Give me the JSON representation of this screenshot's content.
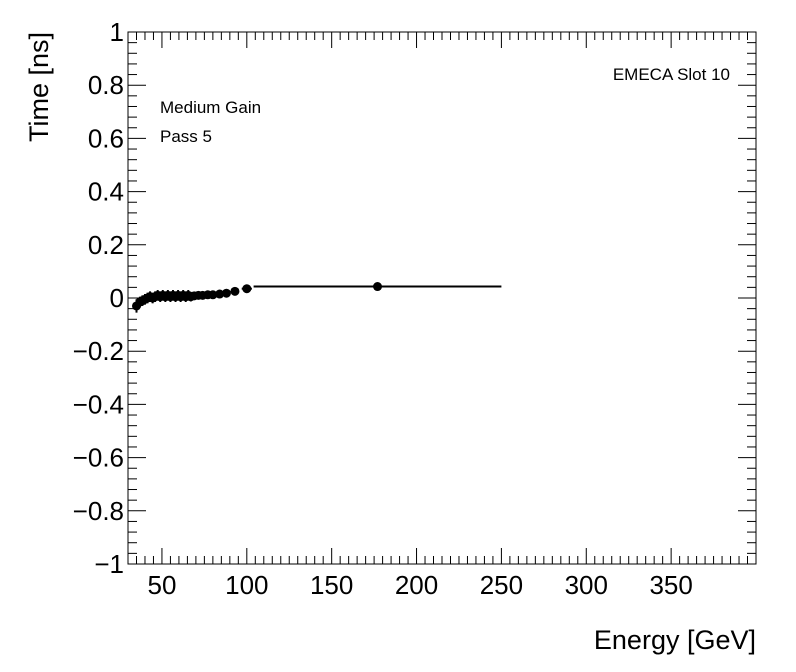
{
  "chart_data": {
    "type": "scatter",
    "title": "",
    "xlabel": "Energy [GeV]",
    "ylabel": "Time [ns]",
    "xlim": [
      30,
      400
    ],
    "ylim": [
      -1,
      1
    ],
    "x_ticks": [
      "50",
      "100",
      "150",
      "200",
      "250",
      "300",
      "350"
    ],
    "x_tick_values": [
      50,
      100,
      150,
      200,
      250,
      300,
      350
    ],
    "y_ticks": [
      "1",
      "0.8",
      "0.6",
      "0.4",
      "0.2",
      "0",
      "−0.2",
      "−0.4",
      "−0.6",
      "−0.8",
      "−1"
    ],
    "y_tick_values": [
      1,
      0.8,
      0.6,
      0.4,
      0.2,
      0,
      -0.2,
      -0.4,
      -0.6,
      -0.8,
      -1
    ],
    "annotations": {
      "gain": "Medium Gain",
      "pass": "Pass 5",
      "slot": "EMECA Slot 10"
    },
    "series": [
      {
        "marker_color": "#000000",
        "points": [
          {
            "x": 35,
            "y": -0.03,
            "xerr": [
              0.5,
              0.5
            ],
            "yerr": 0.025
          },
          {
            "x": 37,
            "y": -0.015,
            "xerr": [
              0.5,
              0.5
            ],
            "yerr": 0.02
          },
          {
            "x": 38.5,
            "y": -0.01,
            "xerr": [
              0.5,
              0.5
            ],
            "yerr": 0.02
          },
          {
            "x": 40,
            "y": -0.005,
            "xerr": [
              0.5,
              0.5
            ],
            "yerr": 0.02
          },
          {
            "x": 41.5,
            "y": 0.0,
            "xerr": [
              0.5,
              0.5
            ],
            "yerr": 0.02
          },
          {
            "x": 43,
            "y": 0.005,
            "xerr": [
              0.5,
              0.5
            ],
            "yerr": 0.02
          },
          {
            "x": 44.5,
            "y": 0.0,
            "xerr": [
              0.5,
              0.5
            ],
            "yerr": 0.02
          },
          {
            "x": 46,
            "y": 0.005,
            "xerr": [
              0.5,
              0.5
            ],
            "yerr": 0.02
          },
          {
            "x": 47.5,
            "y": 0.01,
            "xerr": [
              0.5,
              0.5
            ],
            "yerr": 0.02
          },
          {
            "x": 49,
            "y": 0.005,
            "xerr": [
              0.5,
              0.5
            ],
            "yerr": 0.02
          },
          {
            "x": 50.5,
            "y": 0.01,
            "xerr": [
              0.5,
              0.5
            ],
            "yerr": 0.02
          },
          {
            "x": 52,
            "y": 0.005,
            "xerr": [
              0.5,
              0.5
            ],
            "yerr": 0.02
          },
          {
            "x": 53.5,
            "y": 0.01,
            "xerr": [
              0.5,
              0.5
            ],
            "yerr": 0.02
          },
          {
            "x": 55,
            "y": 0.005,
            "xerr": [
              0.5,
              0.5
            ],
            "yerr": 0.02
          },
          {
            "x": 56.5,
            "y": 0.01,
            "xerr": [
              0.5,
              0.5
            ],
            "yerr": 0.02
          },
          {
            "x": 58,
            "y": 0.005,
            "xerr": [
              0.5,
              0.5
            ],
            "yerr": 0.02
          },
          {
            "x": 59.5,
            "y": 0.01,
            "xerr": [
              0.5,
              0.5
            ],
            "yerr": 0.02
          },
          {
            "x": 61,
            "y": 0.005,
            "xerr": [
              0.5,
              0.5
            ],
            "yerr": 0.02
          },
          {
            "x": 62.5,
            "y": 0.01,
            "xerr": [
              0.5,
              0.5
            ],
            "yerr": 0.02
          },
          {
            "x": 64,
            "y": 0.005,
            "xerr": [
              0.5,
              0.5
            ],
            "yerr": 0.02
          },
          {
            "x": 65.5,
            "y": 0.01,
            "xerr": [
              0.5,
              0.5
            ],
            "yerr": 0.02
          },
          {
            "x": 67,
            "y": 0.005,
            "xerr": [
              0.5,
              0.5
            ],
            "yerr": 0.018
          },
          {
            "x": 69,
            "y": 0.008,
            "xerr": [
              0.7,
              0.7
            ],
            "yerr": 0.015
          },
          {
            "x": 71.5,
            "y": 0.01,
            "xerr": [
              0.8,
              0.8
            ],
            "yerr": 0.013
          },
          {
            "x": 74,
            "y": 0.01,
            "xerr": [
              1,
              1
            ],
            "yerr": 0.012
          },
          {
            "x": 77,
            "y": 0.012,
            "xerr": [
              1,
              1
            ],
            "yerr": 0.011
          },
          {
            "x": 80,
            "y": 0.012,
            "xerr": [
              1.2,
              1.2
            ],
            "yerr": 0.01
          },
          {
            "x": 84,
            "y": 0.015,
            "xerr": [
              1.5,
              1.5
            ],
            "yerr": 0.009
          },
          {
            "x": 88,
            "y": 0.018,
            "xerr": [
              2,
              2
            ],
            "yerr": 0.008
          },
          {
            "x": 93,
            "y": 0.025,
            "xerr": [
              2,
              2
            ],
            "yerr": 0.007
          },
          {
            "x": 100,
            "y": 0.035,
            "xerr": [
              3,
              3
            ],
            "yerr": 0.006
          },
          {
            "x": 177,
            "y": 0.043,
            "xerr": [
              73,
              73
            ],
            "yerr": 0.006
          }
        ]
      }
    ]
  }
}
